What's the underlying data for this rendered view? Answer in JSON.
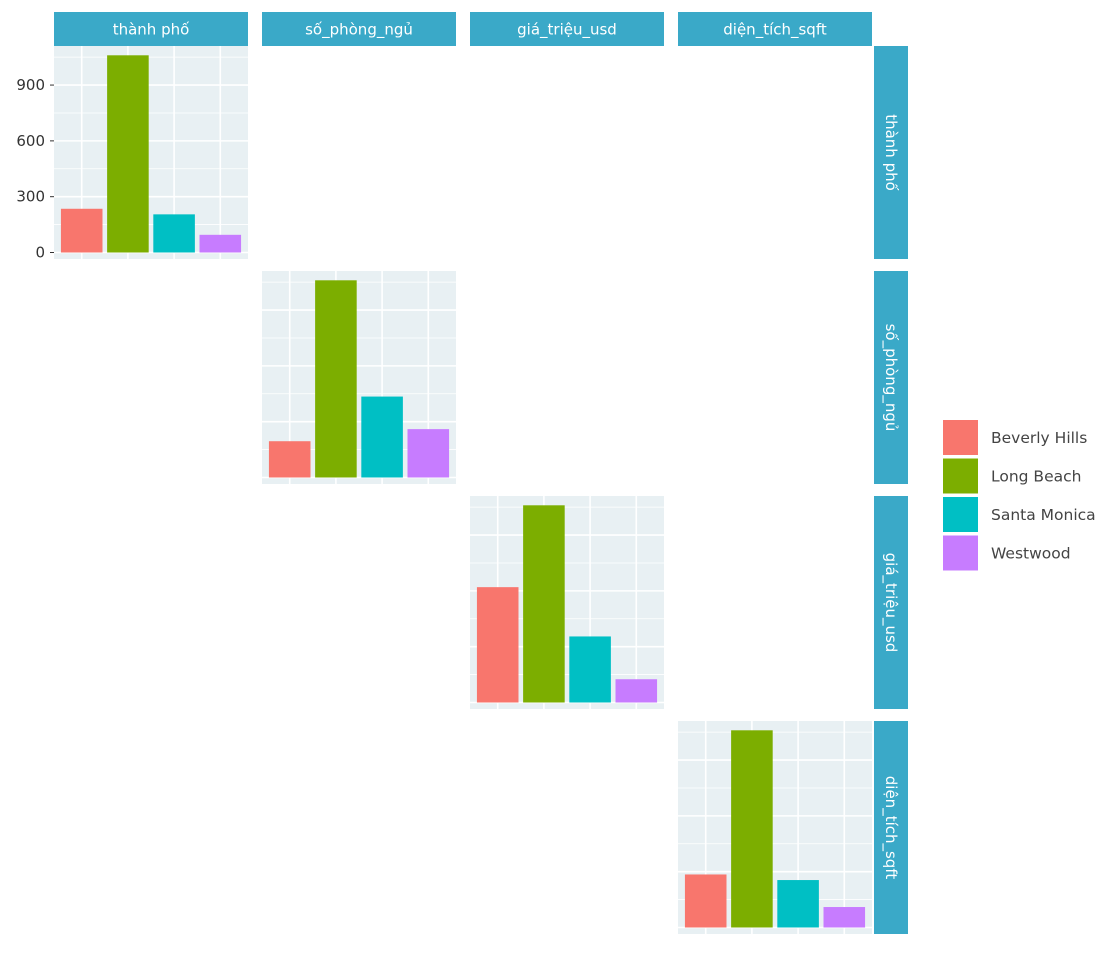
{
  "colors": {
    "strip_bg": "#3aa9c8",
    "panel_bg": "#e8f0f3",
    "grid": "#ffffff",
    "tick_text": "#333333"
  },
  "chart_data": {
    "type": "bar",
    "layout": "pairs-matrix-diagonal",
    "variables": [
      "thành phố",
      "số_phòng_ngủ",
      "giá_triệu_usd",
      "diện_tích_sqft"
    ],
    "categories": [
      "Beverly Hills",
      "Long Beach",
      "Santa Monica",
      "Westwood"
    ],
    "series_colors": [
      "#f8766d",
      "#7cae00",
      "#00bfc4",
      "#c77cff"
    ],
    "ylim": [
      -35,
      1110
    ],
    "yticks": [
      0,
      300,
      600,
      900
    ],
    "yaxis_shown_on_panel": 0,
    "panels": [
      {
        "variable": "thành phố",
        "values": [
          235,
          1060,
          205,
          95
        ]
      },
      {
        "variable": "số_phòng_ngủ",
        "values": [
          195,
          1060,
          435,
          260
        ]
      },
      {
        "variable": "giá_triệu_usd",
        "values": [
          620,
          1060,
          355,
          125
        ]
      },
      {
        "variable": "diện_tích_sqft",
        "values": [
          285,
          1060,
          255,
          110
        ]
      }
    ],
    "legend": {
      "position": "right",
      "entries": [
        "Beverly Hills",
        "Long Beach",
        "Santa Monica",
        "Westwood"
      ]
    },
    "grid": true
  }
}
